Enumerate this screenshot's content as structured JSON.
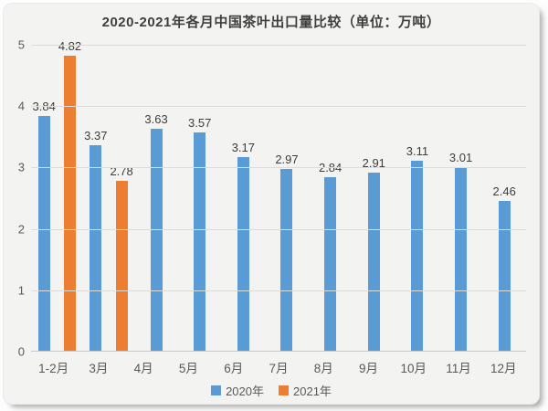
{
  "chart_data": {
    "type": "bar",
    "title": "2020-2021年各月中国茶叶出口量比较（单位：万吨）",
    "unit": "万吨",
    "categories": [
      "1-2月",
      "3月",
      "4月",
      "5月",
      "6月",
      "7月",
      "8月",
      "9月",
      "10月",
      "11月",
      "12月"
    ],
    "series": [
      {
        "name": "2020年",
        "color": "#5B9BD5",
        "values": [
          3.84,
          3.37,
          3.63,
          3.57,
          3.17,
          2.97,
          2.84,
          2.91,
          3.11,
          3.01,
          2.46
        ]
      },
      {
        "name": "2021年",
        "color": "#ED7D31",
        "values": [
          4.82,
          2.78,
          null,
          null,
          null,
          null,
          null,
          null,
          null,
          null,
          null
        ]
      }
    ],
    "ylim": [
      0,
      5
    ],
    "yticks": [
      0,
      1,
      2,
      3,
      4,
      5
    ],
    "grid": "horizontal",
    "gridline_color": "#dcdcda",
    "legend_position": "bottom",
    "value_labels": true,
    "xlabel": "",
    "ylabel": ""
  }
}
